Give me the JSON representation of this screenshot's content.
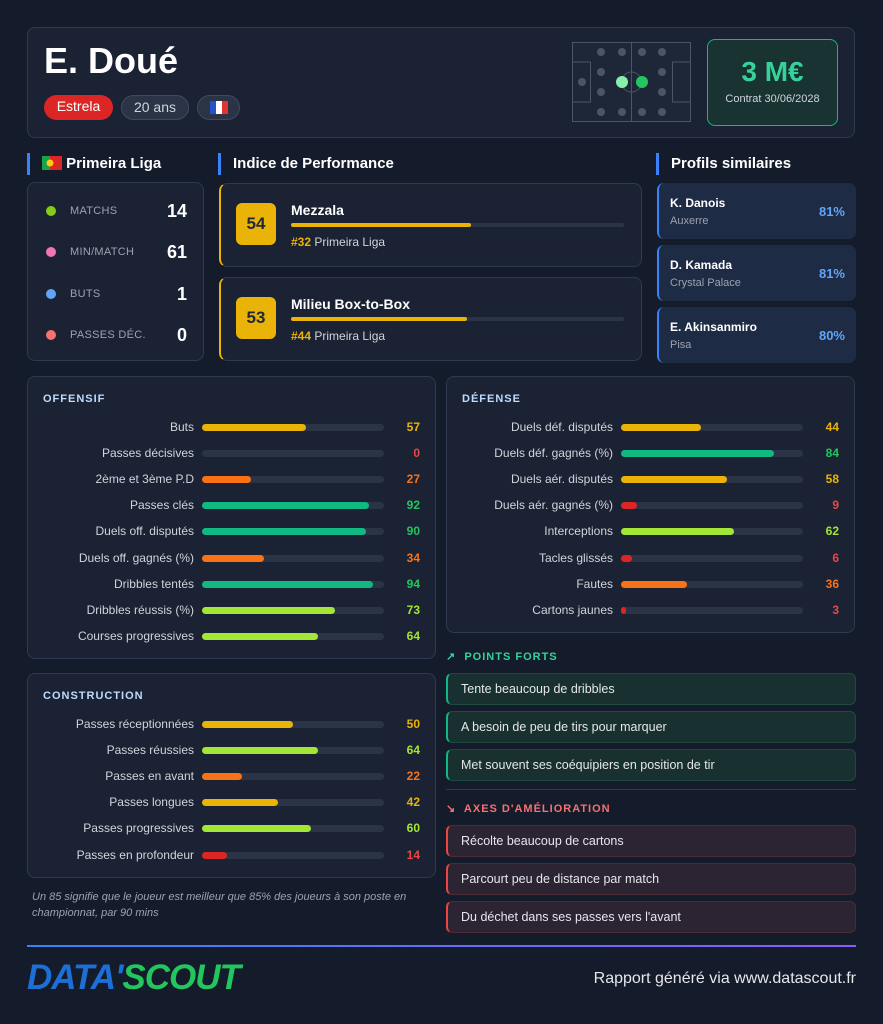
{
  "header": {
    "name": "E. Doué",
    "club": "Estrela",
    "age": "20 ans",
    "market_value": "3 M€",
    "contract": "Contrat 30/06/2028"
  },
  "league": {
    "name": "Primeira Liga",
    "stats": [
      {
        "label": "MATCHS",
        "value": 14
      },
      {
        "label": "MIN/MATCH",
        "value": 61
      },
      {
        "label": "BUTS",
        "value": 1
      },
      {
        "label": "PASSES DÉC.",
        "value": 0
      }
    ]
  },
  "performance": {
    "title": "Indice de Performance",
    "profiles": [
      {
        "score": 54,
        "role": "Mezzala",
        "rank": "#32",
        "league": "Primeira Liga"
      },
      {
        "score": 53,
        "role": "Milieu Box-to-Box",
        "rank": "#44",
        "league": "Primeira Liga"
      }
    ]
  },
  "similar": {
    "title": "Profils similaires",
    "players": [
      {
        "name": "K. Danois",
        "club": "Auxerre",
        "match": "81%"
      },
      {
        "name": "D. Kamada",
        "club": "Crystal Palace",
        "match": "81%"
      },
      {
        "name": "E. Akinsanmiro",
        "club": "Pisa",
        "match": "80%"
      }
    ]
  },
  "offensive": {
    "title": "OFFENSIF",
    "rows": [
      {
        "label": "Buts",
        "value": 57
      },
      {
        "label": "Passes décisives",
        "value": 0
      },
      {
        "label": "2ème et 3ème P.D",
        "value": 27
      },
      {
        "label": "Passes clés",
        "value": 92
      },
      {
        "label": "Duels off. disputés",
        "value": 90
      },
      {
        "label": "Duels off. gagnés (%)",
        "value": 34
      },
      {
        "label": "Dribbles tentés",
        "value": 94
      },
      {
        "label": "Dribbles réussis (%)",
        "value": 73
      },
      {
        "label": "Courses progressives",
        "value": 64
      }
    ]
  },
  "defense": {
    "title": "DÉFENSE",
    "rows": [
      {
        "label": "Duels déf. disputés",
        "value": 44
      },
      {
        "label": "Duels déf. gagnés (%)",
        "value": 84
      },
      {
        "label": "Duels aér. disputés",
        "value": 58
      },
      {
        "label": "Duels aér. gagnés (%)",
        "value": 9
      },
      {
        "label": "Interceptions",
        "value": 62
      },
      {
        "label": "Tacles glissés",
        "value": 6
      },
      {
        "label": "Fautes",
        "value": 36
      },
      {
        "label": "Cartons jaunes",
        "value": 3
      }
    ]
  },
  "construction": {
    "title": "CONSTRUCTION",
    "rows": [
      {
        "label": "Passes réceptionnées",
        "value": 50
      },
      {
        "label": "Passes réussies",
        "value": 64
      },
      {
        "label": "Passes en avant",
        "value": 22
      },
      {
        "label": "Passes longues",
        "value": 42
      },
      {
        "label": "Passes progressives",
        "value": 60
      },
      {
        "label": "Passes en profondeur",
        "value": 14
      }
    ]
  },
  "footnote": "Un 85 signifie que le joueur est meilleur que 85% des joueurs à son poste en championnat, par 90 mins",
  "strengths": {
    "title": "POINTS FORTS",
    "items": [
      "Tente beaucoup de dribbles",
      "A besoin de peu de tirs pour marquer",
      "Met souvent ses coéquipiers en position de tir"
    ]
  },
  "improvements": {
    "title": "AXES D'AMÉLIORATION",
    "items": [
      "Récolte beaucoup de cartons",
      "Parcourt peu de distance par match",
      "Du déchet dans ses passes vers l'avant"
    ]
  },
  "footer": {
    "logo_left": "DATA'",
    "logo_right": "SCOUT",
    "text": "Rapport généré via www.datascout.fr"
  }
}
